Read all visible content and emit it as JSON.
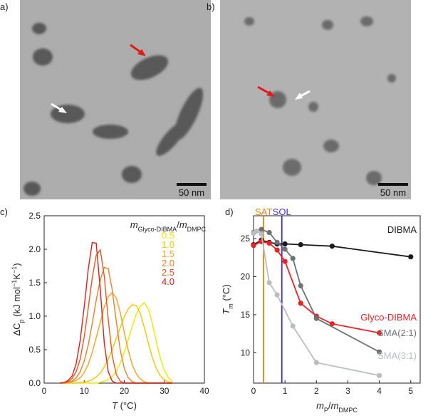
{
  "figure": {
    "panels": [
      "a)",
      "b)",
      "c)",
      "d)"
    ],
    "scale_bars": [
      "50 nm",
      "50 nm"
    ]
  },
  "chart_data": [
    {
      "type": "line",
      "legend_title": [
        {
          "text": "m",
          "style": "italic"
        },
        {
          "text": "Glyco-DIBMA",
          "style": "sub"
        },
        {
          "text": "/",
          "style": "normal"
        },
        {
          "text": "m",
          "style": "italic"
        },
        {
          "text": "DMPC",
          "style": "sub"
        }
      ],
      "xlabel": [
        {
          "text": "T",
          "style": "italic"
        },
        {
          "text": " (°C)",
          "style": "normal"
        }
      ],
      "ylabel": [
        {
          "text": "ΔC",
          "style": "normal"
        },
        {
          "text": "p",
          "style": "sub"
        },
        {
          "text": " (kJ mol",
          "style": "normal"
        },
        {
          "text": "−1",
          "style": "sup"
        },
        {
          "text": "K",
          "style": "normal"
        },
        {
          "text": "−1",
          "style": "sup"
        },
        {
          "text": ")",
          "style": "normal"
        }
      ],
      "xlim": [
        0,
        40
      ],
      "xticks": [
        0,
        10,
        20,
        30,
        40
      ],
      "ylim": [
        0,
        2.5
      ],
      "yticks": [
        {
          "value": 0,
          "label": "0.0"
        },
        0.5,
        {
          "value": 1,
          "label": "1.0"
        },
        1.5,
        {
          "value": 2,
          "label": "2.0"
        },
        2.5
      ],
      "x": [
        4,
        5,
        6,
        7,
        8,
        9,
        10,
        11,
        12,
        13,
        14,
        15,
        16,
        17,
        18,
        19,
        20,
        21,
        22,
        23,
        24,
        25,
        26,
        27,
        28,
        29,
        30,
        31,
        32
      ],
      "series": [
        {
          "name": "0.5",
          "color": "#f2e600",
          "values": [
            0,
            0,
            0,
            0,
            0,
            0,
            0,
            0,
            0,
            0,
            0.01,
            0.03,
            0.05,
            0.1,
            0.18,
            0.3,
            0.46,
            0.65,
            0.85,
            1.03,
            1.15,
            1.2,
            1.11,
            0.89,
            0.62,
            0.37,
            0.19,
            0.08,
            0.03
          ]
        },
        {
          "name": "1.0",
          "color": "#f6c400",
          "values": [
            0,
            0,
            0,
            0,
            0,
            0.01,
            0.01,
            0.03,
            0.05,
            0.09,
            0.15,
            0.24,
            0.36,
            0.5,
            0.67,
            0.83,
            0.99,
            1.11,
            1.17,
            1.16,
            1.04,
            0.83,
            0.6,
            0.38,
            0.22,
            0.11,
            0.05,
            0.02,
            0.01
          ]
        },
        {
          "name": "1.5",
          "color": "#f4a320",
          "values": [
            0,
            0,
            0.01,
            0.02,
            0.04,
            0.08,
            0.16,
            0.28,
            0.46,
            0.68,
            0.91,
            1.14,
            1.29,
            1.35,
            1.27,
            1.05,
            0.76,
            0.49,
            0.27,
            0.14,
            0.06,
            0.02,
            0,
            0,
            0,
            0,
            0,
            0,
            0
          ]
        },
        {
          "name": "2.0",
          "color": "#f07d28",
          "values": [
            0,
            0,
            0.01,
            0.03,
            0.08,
            0.17,
            0.33,
            0.57,
            0.89,
            1.24,
            1.54,
            1.73,
            1.71,
            1.39,
            0.92,
            0.49,
            0.22,
            0.08,
            0.02,
            0,
            0,
            0,
            0,
            0,
            0,
            0,
            0,
            0,
            0
          ]
        },
        {
          "name": "2.5",
          "color": "#e95520",
          "values": [
            0,
            0.01,
            0.02,
            0.07,
            0.17,
            0.36,
            0.69,
            1.12,
            1.57,
            1.91,
            1.99,
            1.6,
            0.95,
            0.41,
            0.13,
            0.03,
            0,
            0,
            0,
            0,
            0,
            0,
            0,
            0,
            0,
            0,
            0,
            0,
            0
          ]
        },
        {
          "name": "4.0",
          "color": "#e01b1b",
          "values": [
            0,
            0.01,
            0.04,
            0.11,
            0.29,
            0.64,
            1.14,
            1.7,
            2.1,
            2.09,
            1.4,
            0.6,
            0.17,
            0.03,
            0,
            0,
            0,
            0,
            0,
            0,
            0,
            0,
            0,
            0,
            0,
            0,
            0,
            0,
            0
          ]
        }
      ]
    },
    {
      "type": "line",
      "xlabel": [
        {
          "text": "m",
          "style": "italic"
        },
        {
          "text": "P",
          "style": "sub"
        },
        {
          "text": "/",
          "style": "normal"
        },
        {
          "text": "m",
          "style": "italic"
        },
        {
          "text": "DMPC",
          "style": "sub"
        }
      ],
      "ylabel": [
        {
          "text": "T",
          "style": "italic"
        },
        {
          "text": "m",
          "style": "sub"
        },
        {
          "text": " (°C)",
          "style": "normal"
        }
      ],
      "xlim": [
        0,
        5.3
      ],
      "xticks": [
        0,
        1,
        2,
        3,
        4,
        5
      ],
      "ylim": [
        6,
        28
      ],
      "yticks": [
        10,
        15,
        20,
        25
      ],
      "markers": [
        {
          "label": "SAT",
          "x": 0.32,
          "color": "#f07d10"
        },
        {
          "label": "SOL",
          "x": 0.9,
          "color": "#4a2fc0"
        }
      ],
      "series": [
        {
          "name": "DIBMA",
          "color": "#1a1a1a",
          "x": [
            0,
            0.25,
            0.5,
            0.75,
            1,
            1.5,
            2.5,
            5
          ],
          "values": [
            24.2,
            24.8,
            24.5,
            24.3,
            24.3,
            24.2,
            24.0,
            22.6
          ]
        },
        {
          "name": "Glyco-DIBMA",
          "color": "#ee2222",
          "x": [
            0,
            0.25,
            0.5,
            0.75,
            1,
            1.5,
            2,
            2.5,
            4
          ],
          "values": [
            24.1,
            24.6,
            24.4,
            23.5,
            22.0,
            16.5,
            14.8,
            13.8,
            12.6
          ]
        },
        {
          "name": "SMA(2:1)",
          "color": "#6e7275",
          "x": [
            0,
            0.25,
            0.5,
            0.75,
            1,
            1.25,
            1.5,
            2,
            4
          ],
          "values": [
            25.8,
            26.2,
            25.8,
            24.5,
            23.6,
            22.4,
            18.8,
            14.5,
            10.1
          ]
        },
        {
          "name": "SMA(3:1)",
          "color": "#b9bdc0",
          "x": [
            0,
            0.1,
            0.25,
            0.5,
            0.75,
            1.25,
            2,
            4
          ],
          "values": [
            25.7,
            26.0,
            25.6,
            19.2,
            17.6,
            13.5,
            8.7,
            7.0
          ]
        }
      ]
    }
  ]
}
